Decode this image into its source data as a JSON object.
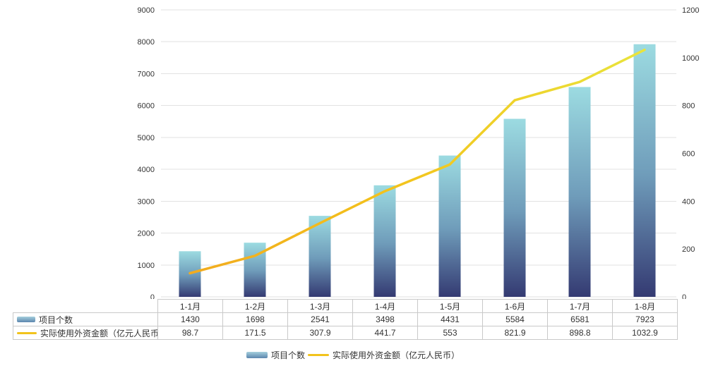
{
  "chart_data": {
    "type": "bar+line",
    "categories": [
      "1-1月",
      "1-2月",
      "1-3月",
      "1-4月",
      "1-5月",
      "1-6月",
      "1-7月",
      "1-8月"
    ],
    "series": [
      {
        "name": "项目个数",
        "type": "bar",
        "axis": "left",
        "values": [
          1430,
          1698,
          2541,
          3498,
          4431,
          5584,
          6581,
          7923
        ]
      },
      {
        "name": "实际使用外资金额（亿元人民币）",
        "type": "line",
        "axis": "right",
        "values": [
          98.7,
          171.5,
          307.9,
          441.7,
          553,
          821.9,
          898.8,
          1032.9
        ]
      }
    ],
    "left_axis": {
      "min": 0,
      "max": 9000,
      "step": 1000,
      "ticks": [
        "0",
        "1000",
        "2000",
        "3000",
        "4000",
        "5000",
        "6000",
        "7000",
        "8000",
        "9000"
      ]
    },
    "right_axis": {
      "min": 0,
      "max": 1200,
      "step": 200,
      "ticks": [
        "0",
        "200",
        "400",
        "600",
        "800",
        "1000",
        "1200"
      ]
    },
    "grid": true,
    "legend_position": "bottom",
    "table_below_axis": true,
    "colors": {
      "bar_gradient_top": "#9cdbe1",
      "bar_gradient_mid": "#6f9cba",
      "bar_gradient_bottom": "#343a72",
      "line_gradient_start": "#f2ab1e",
      "line_gradient_mid": "#f3c31c",
      "line_gradient_end": "#e9e43c",
      "gridline": "#e2e2e2",
      "axis_text": "#333333",
      "table_border": "#c9c9c9",
      "legend_bar_swatch_top": "#a5cfdd",
      "legend_bar_swatch_bottom": "#5c86ae",
      "legend_line_swatch": "#f2c31c"
    }
  }
}
